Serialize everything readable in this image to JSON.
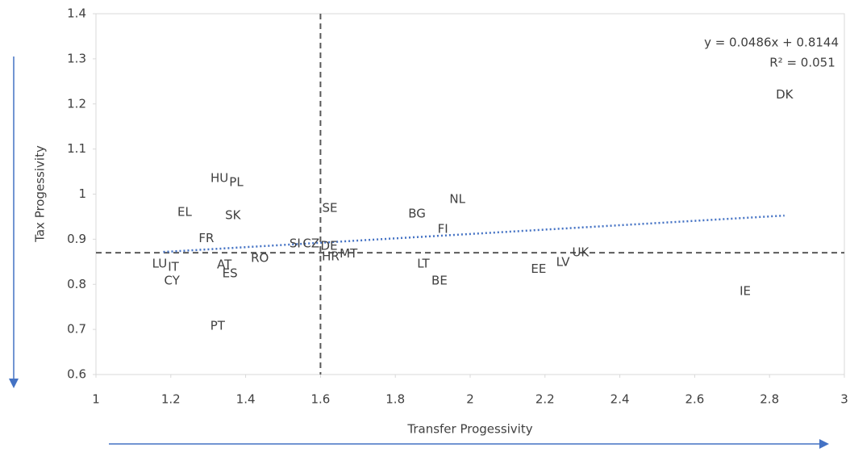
{
  "chart_data": {
    "type": "scatter",
    "x_label": "Transfer Progessivity",
    "y_label": "Tax Progessivity",
    "labels": [
      "DK",
      "HU",
      "PL",
      "EL",
      "SK",
      "SE",
      "NL",
      "BG",
      "FI",
      "FR",
      "SI",
      "CZ",
      "DE",
      "HR",
      "MT",
      "RO",
      "LU",
      "IT",
      "AT",
      "ES",
      "CY",
      "LT",
      "BE",
      "EE",
      "LV",
      "UK",
      "IE",
      "PT"
    ],
    "x": [
      2.84,
      1.33,
      1.375,
      1.237,
      1.366,
      1.625,
      1.966,
      1.858,
      1.927,
      1.295,
      1.532,
      1.575,
      1.623,
      1.627,
      1.675,
      1.438,
      1.17,
      1.207,
      1.343,
      1.358,
      1.203,
      1.875,
      1.918,
      2.183,
      2.248,
      2.295,
      2.735,
      1.325
    ],
    "values": [
      1.22,
      1.035,
      1.026,
      0.96,
      0.953,
      0.969,
      0.988,
      0.956,
      0.922,
      0.902,
      0.89,
      0.89,
      0.885,
      0.861,
      0.868,
      0.858,
      0.845,
      0.838,
      0.843,
      0.824,
      0.808,
      0.845,
      0.808,
      0.834,
      0.849,
      0.87,
      0.784,
      0.707
    ],
    "xlim": [
      1,
      3
    ],
    "xticks": [
      1,
      1.2,
      1.4,
      1.6,
      1.8,
      2,
      2.2,
      2.4,
      2.6,
      2.8,
      3
    ],
    "ylim": [
      0.6,
      1.4
    ],
    "yticks": [
      0.6,
      0.7,
      0.8,
      0.9,
      1,
      1.1,
      1.2,
      1.3,
      1.4
    ],
    "vline": 1.6,
    "hline": 0.87,
    "trendline": {
      "slope": 0.0486,
      "intercept": 0.8144,
      "x_range": [
        1.18,
        2.84
      ],
      "color": "#4472c4"
    },
    "equation": "y = 0.0486x + 0.8144",
    "r_squared": "R² = 0.051",
    "arrow_color": "#4472c4"
  }
}
